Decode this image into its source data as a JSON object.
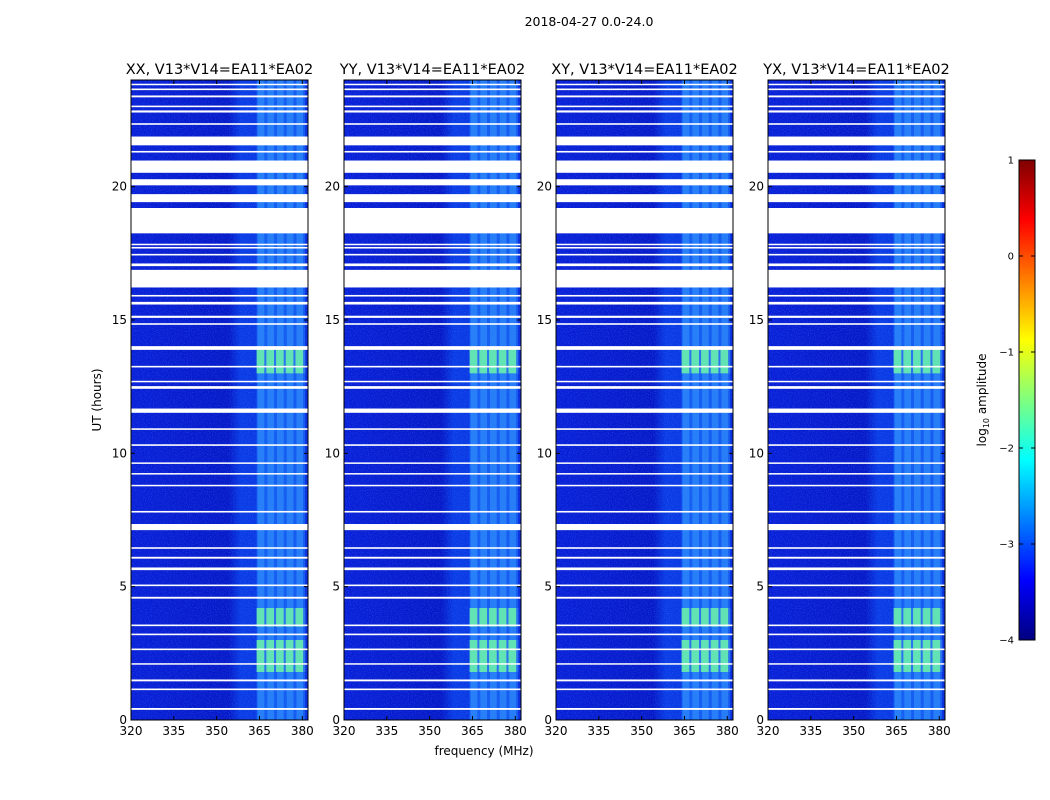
{
  "figure_title": "2018-04-27 0.0-24.0",
  "chart_data": [
    {
      "type": "heatmap",
      "title": "XX, V13*V14=EA11*EA02",
      "xlabel": "",
      "ylabel": "UT (hours)",
      "xlim": [
        320,
        382
      ],
      "ylim": [
        0,
        24
      ],
      "xticks": [
        320,
        335,
        350,
        365,
        380
      ],
      "yticks": [
        0,
        5,
        10,
        15,
        20
      ],
      "rfi_band_mhz": [
        364,
        381
      ],
      "rfi_hot_hours": [
        [
          13.0,
          14.0
        ],
        [
          3.5,
          4.2
        ],
        [
          1.8,
          3.0
        ]
      ]
    },
    {
      "type": "heatmap",
      "title": "YY, V13*V14=EA11*EA02",
      "xlabel": "frequency (MHz)",
      "ylabel": "",
      "xlim": [
        320,
        382
      ],
      "ylim": [
        0,
        24
      ],
      "xticks": [
        320,
        335,
        350,
        365,
        380
      ],
      "yticks": [
        0,
        5,
        10,
        15,
        20
      ],
      "rfi_band_mhz": [
        364,
        381
      ],
      "rfi_hot_hours": [
        [
          13.0,
          14.0
        ],
        [
          3.5,
          4.2
        ],
        [
          1.8,
          3.0
        ]
      ]
    },
    {
      "type": "heatmap",
      "title": "XY, V13*V14=EA11*EA02",
      "xlabel": "",
      "ylabel": "",
      "xlim": [
        320,
        382
      ],
      "ylim": [
        0,
        24
      ],
      "xticks": [
        320,
        335,
        350,
        365,
        380
      ],
      "yticks": [
        0,
        5,
        10,
        15,
        20
      ],
      "rfi_band_mhz": [
        364,
        381
      ],
      "rfi_hot_hours": [
        [
          13.0,
          14.0
        ],
        [
          3.5,
          4.2
        ],
        [
          1.8,
          3.0
        ]
      ]
    },
    {
      "type": "heatmap",
      "title": "YX, V13*V14=EA11*EA02",
      "xlabel": "",
      "ylabel": "",
      "xlim": [
        320,
        382
      ],
      "ylim": [
        0,
        24
      ],
      "xticks": [
        320,
        335,
        350,
        365,
        380
      ],
      "yticks": [
        0,
        5,
        10,
        15,
        20
      ],
      "rfi_band_mhz": [
        364,
        381
      ],
      "rfi_hot_hours": [
        [
          13.0,
          14.0
        ],
        [
          3.5,
          4.2
        ],
        [
          1.8,
          3.0
        ]
      ]
    }
  ],
  "flagged_gaps_hours": [
    [
      0.38,
      0.45
    ],
    [
      1.12,
      1.18
    ],
    [
      1.45,
      1.52
    ],
    [
      2.08,
      2.13
    ],
    [
      2.62,
      2.68
    ],
    [
      3.18,
      3.24
    ],
    [
      3.52,
      3.58
    ],
    [
      4.55,
      4.62
    ],
    [
      5.02,
      5.08
    ],
    [
      5.62,
      5.72
    ],
    [
      6.05,
      6.12
    ],
    [
      6.42,
      6.48
    ],
    [
      7.12,
      7.35
    ],
    [
      7.78,
      7.84
    ],
    [
      8.78,
      8.82
    ],
    [
      9.22,
      9.26
    ],
    [
      9.62,
      9.66
    ],
    [
      10.28,
      10.34
    ],
    [
      10.88,
      10.94
    ],
    [
      11.52,
      11.68
    ],
    [
      12.42,
      12.52
    ],
    [
      12.68,
      12.72
    ],
    [
      13.22,
      13.28
    ],
    [
      13.88,
      14.02
    ],
    [
      14.82,
      14.88
    ],
    [
      15.08,
      15.16
    ],
    [
      15.58,
      15.68
    ],
    [
      15.88,
      15.94
    ],
    [
      16.22,
      16.88
    ],
    [
      17.02,
      17.12
    ],
    [
      17.42,
      17.48
    ],
    [
      17.68,
      17.74
    ],
    [
      17.82,
      17.86
    ],
    [
      18.25,
      19.2
    ],
    [
      19.42,
      19.72
    ],
    [
      20.05,
      20.28
    ],
    [
      20.52,
      20.98
    ],
    [
      21.28,
      21.34
    ],
    [
      21.55,
      21.88
    ],
    [
      22.32,
      22.38
    ],
    [
      22.78,
      22.86
    ],
    [
      22.98,
      23.04
    ],
    [
      23.35,
      23.42
    ],
    [
      23.62,
      23.68
    ],
    [
      23.82,
      23.86
    ]
  ],
  "colorbar": {
    "label": "log10 amplitude",
    "label_main": "log",
    "label_sub": "10",
    "label_tail": " amplitude",
    "ticks": [
      1,
      0,
      -1,
      -2,
      -3,
      -4
    ],
    "range": [
      -4,
      1
    ],
    "colormap": "jet",
    "colors": [
      "#00007f",
      "#0000ff",
      "#007fff",
      "#00ffff",
      "#7fff7f",
      "#ffff00",
      "#ff7f00",
      "#ff0000",
      "#7f0000"
    ]
  }
}
